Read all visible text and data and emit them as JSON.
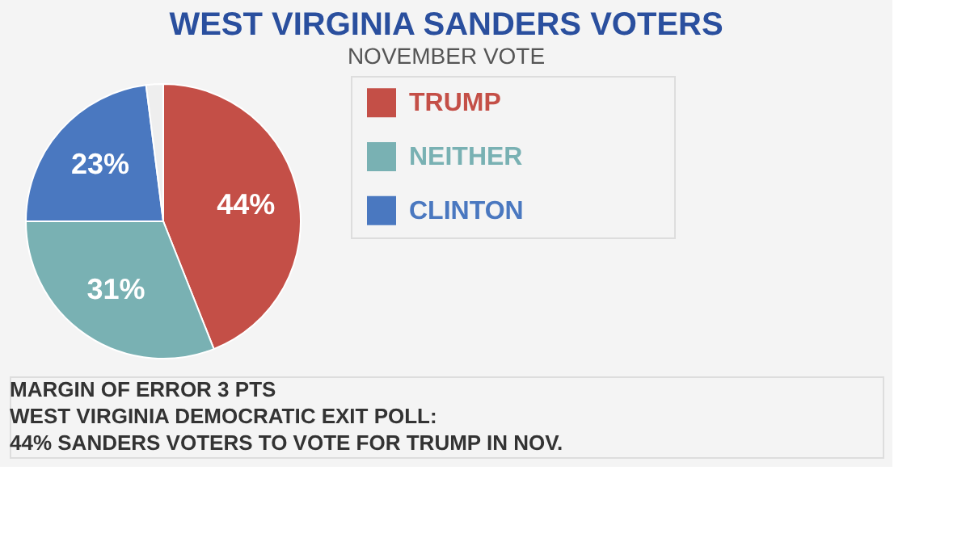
{
  "chart_data": {
    "type": "pie",
    "title": "WEST VIRGINIA SANDERS VOTERS",
    "subtitle": "NOVEMBER VOTE",
    "categories": [
      "TRUMP",
      "NEITHER",
      "CLINTON",
      null
    ],
    "values": [
      44,
      31,
      23,
      2
    ],
    "colors": [
      "#c44f47",
      "#79b1b3",
      "#4a78c0",
      "#eeeeee"
    ],
    "value_labels": [
      "44%",
      "31%",
      "23%",
      null
    ],
    "legend": "right",
    "annotations": [
      "MARGIN OF ERROR 3 PTS",
      "WEST VIRGINIA DEMOCRATIC EXIT POLL:",
      "44% SANDERS VOTERS TO VOTE FOR TRUMP IN NOV."
    ]
  }
}
